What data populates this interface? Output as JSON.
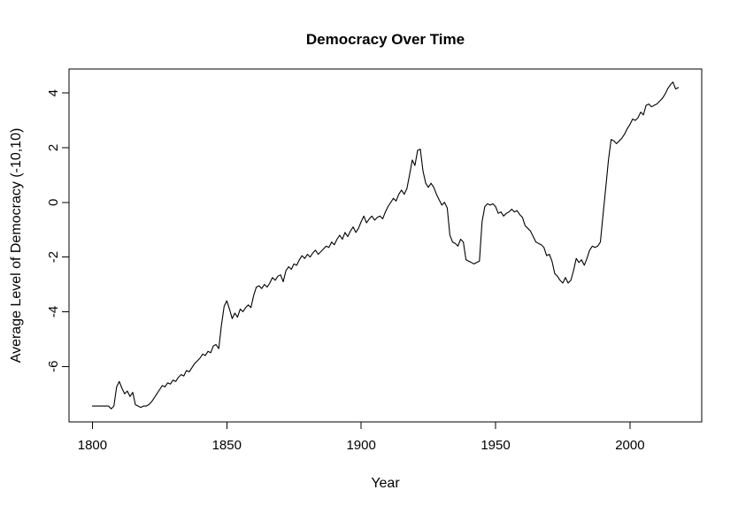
{
  "chart_data": {
    "type": "line",
    "title": "Democracy Over Time",
    "xlabel": "Year",
    "ylabel": "Average Level of Democracy (-10,10)",
    "x_ticks": [
      1800,
      1850,
      1900,
      1950,
      2000
    ],
    "y_ticks": [
      4,
      2,
      0,
      -2,
      -4,
      -6
    ],
    "xlim": [
      1791.3,
      2026.7
    ],
    "ylim": [
      -8.03,
      4.88
    ],
    "grid": false,
    "legend": null,
    "line_color": "#000000",
    "frame_color": "#000000",
    "background": "#ffffff",
    "x_start": 1800,
    "x_step": 1,
    "values": [
      -7.45,
      -7.45,
      -7.45,
      -7.45,
      -7.45,
      -7.45,
      -7.45,
      -7.55,
      -7.45,
      -6.75,
      -6.55,
      -6.8,
      -7.0,
      -6.9,
      -7.1,
      -6.95,
      -7.4,
      -7.45,
      -7.5,
      -7.45,
      -7.45,
      -7.4,
      -7.3,
      -7.15,
      -7.0,
      -6.85,
      -6.7,
      -6.75,
      -6.6,
      -6.65,
      -6.5,
      -6.55,
      -6.4,
      -6.3,
      -6.35,
      -6.15,
      -6.2,
      -6.05,
      -5.9,
      -5.8,
      -5.7,
      -5.55,
      -5.6,
      -5.45,
      -5.5,
      -5.25,
      -5.2,
      -5.35,
      -4.5,
      -3.8,
      -3.6,
      -3.9,
      -4.25,
      -4.05,
      -4.2,
      -3.9,
      -4.0,
      -3.85,
      -3.75,
      -3.85,
      -3.4,
      -3.1,
      -3.05,
      -3.15,
      -3.0,
      -3.1,
      -2.95,
      -2.75,
      -2.85,
      -2.7,
      -2.65,
      -2.9,
      -2.5,
      -2.35,
      -2.45,
      -2.25,
      -2.3,
      -2.1,
      -1.95,
      -2.05,
      -1.9,
      -2.0,
      -1.85,
      -1.75,
      -1.9,
      -1.8,
      -1.7,
      -1.6,
      -1.65,
      -1.45,
      -1.55,
      -1.35,
      -1.2,
      -1.35,
      -1.1,
      -1.25,
      -1.05,
      -0.9,
      -1.1,
      -0.95,
      -0.7,
      -0.5,
      -0.75,
      -0.6,
      -0.5,
      -0.65,
      -0.55,
      -0.5,
      -0.6,
      -0.35,
      -0.15,
      0.0,
      0.15,
      0.05,
      0.3,
      0.45,
      0.3,
      0.5,
      1.0,
      1.55,
      1.35,
      1.9,
      1.95,
      1.15,
      0.7,
      0.55,
      0.7,
      0.55,
      0.3,
      0.1,
      -0.1,
      0.0,
      -0.2,
      -1.2,
      -1.45,
      -1.5,
      -1.6,
      -1.35,
      -1.45,
      -2.1,
      -2.15,
      -2.2,
      -2.25,
      -2.2,
      -2.15,
      -0.7,
      -0.15,
      -0.05,
      -0.1,
      -0.05,
      -0.15,
      -0.4,
      -0.35,
      -0.5,
      -0.4,
      -0.35,
      -0.25,
      -0.35,
      -0.3,
      -0.45,
      -0.55,
      -0.85,
      -0.95,
      -1.05,
      -1.25,
      -1.45,
      -1.5,
      -1.55,
      -1.65,
      -1.95,
      -1.9,
      -2.15,
      -2.6,
      -2.7,
      -2.85,
      -2.95,
      -2.75,
      -2.95,
      -2.85,
      -2.5,
      -2.05,
      -2.2,
      -2.1,
      -2.3,
      -2.05,
      -1.75,
      -1.6,
      -1.65,
      -1.6,
      -1.45,
      -0.45,
      0.55,
      1.55,
      2.3,
      2.25,
      2.15,
      2.25,
      2.35,
      2.5,
      2.7,
      2.85,
      3.05,
      3.0,
      3.1,
      3.3,
      3.2,
      3.55,
      3.6,
      3.5,
      3.55,
      3.6,
      3.7,
      3.8,
      3.95,
      4.15,
      4.3,
      4.4,
      4.15,
      4.2
    ]
  }
}
